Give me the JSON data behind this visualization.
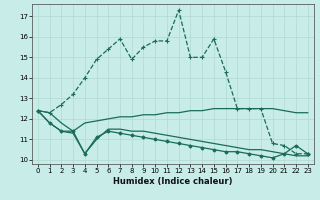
{
  "xlabel": "Humidex (Indice chaleur)",
  "xlim": [
    -0.5,
    23.5
  ],
  "ylim": [
    9.8,
    17.6
  ],
  "yticks": [
    10,
    11,
    12,
    13,
    14,
    15,
    16,
    17
  ],
  "xticks": [
    0,
    1,
    2,
    3,
    4,
    5,
    6,
    7,
    8,
    9,
    10,
    11,
    12,
    13,
    14,
    15,
    16,
    17,
    18,
    19,
    20,
    21,
    22,
    23
  ],
  "background_color": "#c8ede8",
  "grid_color": "#b0d8d0",
  "line_color": "#1a6b5a",
  "line1_x": [
    0,
    1,
    2,
    3,
    4,
    5,
    6,
    7,
    8,
    9,
    10,
    11,
    12,
    13,
    14,
    15,
    16,
    17,
    18,
    19,
    20,
    21,
    22,
    23
  ],
  "line1_y": [
    12.4,
    12.3,
    12.7,
    13.2,
    14.0,
    14.9,
    15.4,
    15.9,
    14.9,
    15.5,
    15.8,
    15.8,
    17.3,
    15.0,
    15.0,
    15.9,
    14.3,
    12.5,
    12.5,
    12.5,
    10.8,
    10.7,
    10.3,
    10.3
  ],
  "line2_x": [
    0,
    1,
    2,
    3,
    4,
    5,
    6,
    7,
    8,
    9,
    10,
    11,
    12,
    13,
    14,
    15,
    16,
    17,
    18,
    19,
    20,
    21,
    22,
    23
  ],
  "line2_y": [
    12.4,
    12.3,
    11.8,
    11.4,
    11.8,
    11.9,
    12.0,
    12.1,
    12.1,
    12.2,
    12.2,
    12.3,
    12.3,
    12.4,
    12.4,
    12.5,
    12.5,
    12.5,
    12.5,
    12.5,
    12.5,
    12.4,
    12.3,
    12.3
  ],
  "line3_x": [
    0,
    1,
    2,
    3,
    4,
    5,
    6,
    7,
    8,
    9,
    10,
    11,
    12,
    13,
    14,
    15,
    16,
    17,
    18,
    19,
    20,
    21,
    22,
    23
  ],
  "line3_y": [
    12.4,
    11.8,
    11.4,
    11.3,
    10.3,
    11.0,
    11.5,
    11.5,
    11.4,
    11.4,
    11.3,
    11.2,
    11.1,
    11.0,
    10.9,
    10.8,
    10.7,
    10.6,
    10.5,
    10.5,
    10.4,
    10.3,
    10.2,
    10.2
  ],
  "line4_x": [
    0,
    1,
    2,
    3,
    4,
    5,
    6,
    7,
    8,
    9,
    10,
    11,
    12,
    13,
    14,
    15,
    16,
    17,
    18,
    19,
    20,
    21,
    22,
    23
  ],
  "line4_y": [
    12.4,
    11.8,
    11.4,
    11.4,
    10.3,
    11.1,
    11.4,
    11.3,
    11.2,
    11.1,
    11.0,
    10.9,
    10.8,
    10.7,
    10.6,
    10.5,
    10.4,
    10.4,
    10.3,
    10.2,
    10.1,
    10.3,
    10.7,
    10.3
  ]
}
